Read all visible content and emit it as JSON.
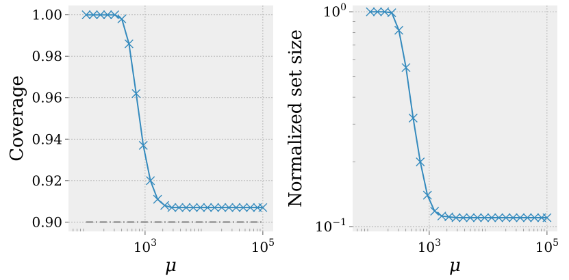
{
  "chart_data": [
    {
      "type": "line",
      "xlabel": "μ",
      "ylabel": "Coverage",
      "x_scale": "log",
      "xlim": [
        50,
        150000
      ],
      "ylim": [
        0.8955,
        1.0045
      ],
      "grid": true,
      "x_ticks": [
        {
          "value": 1000,
          "base": "10",
          "exp": "3"
        },
        {
          "value": 100000,
          "base": "10",
          "exp": "5"
        }
      ],
      "y_ticks": [
        {
          "value": 0.9,
          "label": "0.90"
        },
        {
          "value": 0.92,
          "label": "0.92"
        },
        {
          "value": 0.94,
          "label": "0.94"
        },
        {
          "value": 0.96,
          "label": "0.96"
        },
        {
          "value": 0.98,
          "label": "0.98"
        },
        {
          "value": 1.0,
          "label": "1.00"
        }
      ],
      "reference_line": {
        "y": 0.9,
        "style": "dash-dot",
        "color": "#808080"
      },
      "series": [
        {
          "color": "#348ABD",
          "marker": "x",
          "x": [
            100,
            132,
            175,
            231,
            305,
            403,
            533,
            705,
            932,
            1233,
            1630,
            2154,
            2848,
            3765,
            4977,
            6579,
            8697,
            11498,
            15199,
            20092,
            26561,
            35112,
            46416,
            61359,
            81113,
            100000
          ],
          "y": [
            1.0,
            1.0,
            1.0,
            1.0,
            1.0,
            0.998,
            0.986,
            0.962,
            0.937,
            0.92,
            0.911,
            0.908,
            0.907,
            0.907,
            0.907,
            0.907,
            0.907,
            0.907,
            0.907,
            0.907,
            0.907,
            0.907,
            0.907,
            0.907,
            0.907,
            0.907
          ]
        }
      ]
    },
    {
      "type": "line",
      "xlabel": "μ",
      "ylabel": "Normalized set size",
      "x_scale": "log",
      "y_scale": "log",
      "xlim": [
        50,
        150000
      ],
      "ylim": [
        0.095,
        1.07
      ],
      "grid": true,
      "x_ticks": [
        {
          "value": 1000,
          "base": "10",
          "exp": "3"
        },
        {
          "value": 100000,
          "base": "10",
          "exp": "5"
        }
      ],
      "y_ticks": [
        {
          "value": 0.1,
          "base": "10",
          "exp": "−1"
        },
        {
          "value": 1,
          "base": "10",
          "exp": "0"
        }
      ],
      "series": [
        {
          "color": "#348ABD",
          "marker": "x",
          "x": [
            100,
            132,
            175,
            231,
            305,
            403,
            533,
            705,
            932,
            1233,
            1630,
            2154,
            2848,
            3765,
            4977,
            6579,
            8697,
            11498,
            15199,
            20092,
            26561,
            35112,
            46416,
            61359,
            81113,
            100000
          ],
          "y": [
            1.0,
            1.0,
            1.0,
            0.99,
            0.82,
            0.55,
            0.32,
            0.2,
            0.14,
            0.118,
            0.112,
            0.111,
            0.11,
            0.11,
            0.11,
            0.11,
            0.11,
            0.11,
            0.11,
            0.11,
            0.11,
            0.11,
            0.11,
            0.11,
            0.11,
            0.11
          ]
        }
      ]
    }
  ]
}
